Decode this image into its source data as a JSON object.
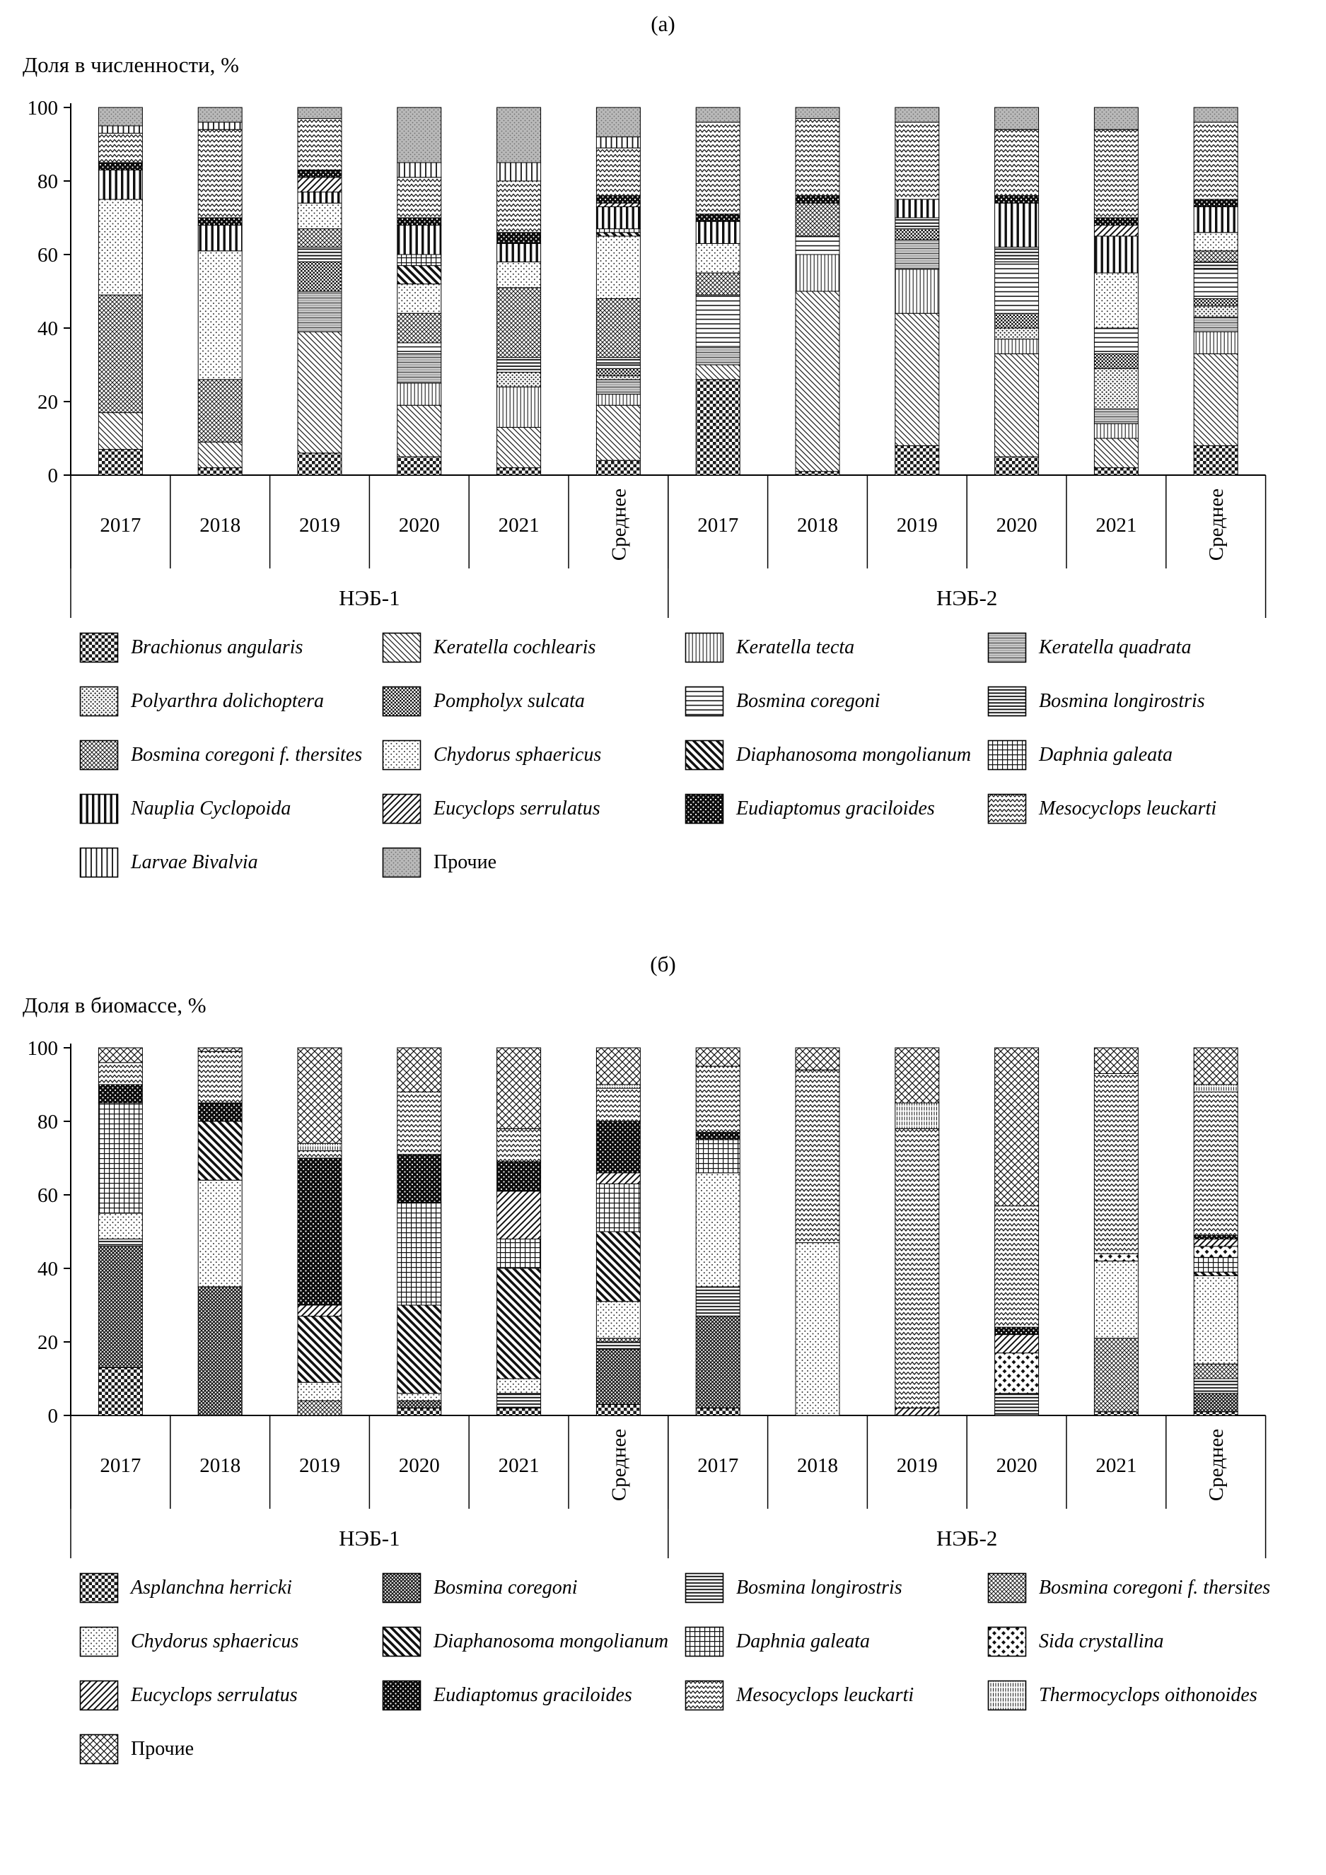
{
  "charts": [
    {
      "panel_label": "(а)",
      "y_axis_title": "Доля в численности, %",
      "chart_data": {
        "type": "bar",
        "stacked": true,
        "ylim": [
          0,
          100
        ],
        "yticks": [
          0,
          20,
          40,
          60,
          80,
          100
        ],
        "grid": false,
        "legend_position": "bottom",
        "groups": [
          {
            "label": "НЭБ-1",
            "categories": [
              "2017",
              "2018",
              "2019",
              "2020",
              "2021",
              "Среднее"
            ]
          },
          {
            "label": "НЭБ-2",
            "categories": [
              "2017",
              "2018",
              "2019",
              "2020",
              "2021",
              "Среднее"
            ]
          }
        ],
        "series": [
          {
            "name": "Brachionus angularis",
            "pattern": "checker",
            "values": [
              7,
              2,
              6,
              5,
              2,
              4,
              26,
              1,
              8,
              5,
              2,
              8
            ]
          },
          {
            "name": "Keratella cochlearis",
            "pattern": "diag-back",
            "values": [
              10,
              7,
              33,
              14,
              11,
              15,
              4,
              49,
              36,
              28,
              8,
              25
            ]
          },
          {
            "name": "Keratella tecta",
            "pattern": "vlines-fine",
            "values": [
              0,
              0,
              0,
              6,
              11,
              3,
              0,
              10,
              12,
              4,
              4,
              6
            ]
          },
          {
            "name": "Keratella quadrata",
            "pattern": "hdash-gray",
            "values": [
              0,
              0,
              11,
              8,
              0,
              4,
              5,
              0,
              8,
              0,
              4,
              4
            ]
          },
          {
            "name": "Polyarthra dolichoptera",
            "pattern": "dots",
            "values": [
              0,
              0,
              0,
              0,
              4,
              1,
              0,
              0,
              0,
              3,
              11,
              3
            ]
          },
          {
            "name": "Pompholyx sulcata",
            "pattern": "checker-fine",
            "values": [
              0,
              0,
              8,
              0,
              0,
              2,
              0,
              0,
              3,
              4,
              4,
              2
            ]
          },
          {
            "name": "Bosmina coregoni",
            "pattern": "hlines",
            "values": [
              0,
              0,
              0,
              3,
              0,
              1,
              14,
              5,
              0,
              14,
              7,
              8
            ]
          },
          {
            "name": "Bosmina longirostris",
            "pattern": "hlines-thick",
            "values": [
              0,
              0,
              4,
              0,
              4,
              2,
              0,
              0,
              3,
              4,
              0,
              2
            ]
          },
          {
            "name": "Bosmina coregoni f. thersites",
            "pattern": "weave",
            "values": [
              32,
              17,
              5,
              8,
              19,
              16,
              6,
              9,
              0,
              0,
              0,
              3
            ]
          },
          {
            "name": "Chydorus sphaericus",
            "pattern": "dots-light",
            "values": [
              26,
              35,
              7,
              8,
              7,
              17,
              8,
              0,
              0,
              0,
              15,
              5
            ]
          },
          {
            "name": "Diaphanosoma mongolianum",
            "pattern": "diag-back-bold",
            "values": [
              0,
              0,
              0,
              5,
              0,
              1,
              0,
              0,
              0,
              0,
              0,
              0
            ]
          },
          {
            "name": "Daphnia galeata",
            "pattern": "grid",
            "values": [
              0,
              0,
              0,
              3,
              0,
              1,
              0,
              0,
              0,
              0,
              0,
              0
            ]
          },
          {
            "name": "Nauplia Cyclopoida",
            "pattern": "vbars",
            "values": [
              8,
              7,
              3,
              8,
              5,
              6,
              6,
              0,
              5,
              12,
              10,
              7
            ]
          },
          {
            "name": "Eucyclops serrulatus",
            "pattern": "diag-fwd",
            "values": [
              0,
              0,
              4,
              0,
              0,
              1,
              0,
              0,
              0,
              0,
              3,
              0
            ]
          },
          {
            "name": "Eudiaptomus graciloides",
            "pattern": "black-dots",
            "values": [
              2,
              2,
              2,
              2,
              3,
              2,
              2,
              2,
              0,
              2,
              2,
              2
            ]
          },
          {
            "name": "Mesocyclops leuckarti",
            "pattern": "zigzag",
            "values": [
              8,
              24,
              14,
              11,
              14,
              13,
              25,
              21,
              21,
              18,
              24,
              21
            ]
          },
          {
            "name": "Larvae Bivalvia",
            "pattern": "vlines",
            "values": [
              2,
              2,
              0,
              4,
              5,
              3,
              0,
              0,
              0,
              0,
              0,
              0
            ]
          },
          {
            "name": "Прочие",
            "pattern": "gray-dots",
            "italic": false,
            "values": [
              5,
              4,
              3,
              15,
              15,
              8,
              4,
              3,
              4,
              6,
              6,
              4
            ]
          }
        ]
      }
    },
    {
      "panel_label": "(б)",
      "y_axis_title": "Доля в биомассе, %",
      "chart_data": {
        "type": "bar",
        "stacked": true,
        "ylim": [
          0,
          100
        ],
        "yticks": [
          0,
          20,
          40,
          60,
          80,
          100
        ],
        "grid": false,
        "legend_position": "bottom",
        "groups": [
          {
            "label": "НЭБ-1",
            "categories": [
              "2017",
              "2018",
              "2019",
              "2020",
              "2021",
              "Среднее"
            ]
          },
          {
            "label": "НЭБ-2",
            "categories": [
              "2017",
              "2018",
              "2019",
              "2020",
              "2021",
              "Среднее"
            ]
          }
        ],
        "series": [
          {
            "name": "Asplanchna herricki",
            "pattern": "checker",
            "values": [
              13,
              0,
              0,
              2,
              2,
              3,
              2,
              0,
              0,
              0,
              1,
              1
            ]
          },
          {
            "name": "Bosmina coregoni",
            "pattern": "weave-dark",
            "values": [
              33,
              35,
              0,
              2,
              0,
              15,
              25,
              0,
              0,
              0,
              0,
              5
            ]
          },
          {
            "name": "Bosmina longirostris",
            "pattern": "hlines-thick",
            "values": [
              2,
              0,
              0,
              0,
              4,
              2,
              8,
              0,
              0,
              6,
              0,
              4
            ]
          },
          {
            "name": "Bosmina coregoni f. thersites",
            "pattern": "weave",
            "values": [
              0,
              0,
              4,
              0,
              0,
              1,
              0,
              0,
              0,
              0,
              20,
              4
            ]
          },
          {
            "name": "Chydorus sphaericus",
            "pattern": "dots-light",
            "values": [
              7,
              29,
              5,
              2,
              4,
              10,
              31,
              47,
              0,
              0,
              21,
              24
            ]
          },
          {
            "name": "Diaphanosoma mongolianum",
            "pattern": "diag-back-bold",
            "values": [
              0,
              16,
              18,
              24,
              30,
              19,
              0,
              0,
              0,
              0,
              0,
              1
            ]
          },
          {
            "name": "Daphnia galeata",
            "pattern": "grid",
            "values": [
              30,
              0,
              0,
              28,
              8,
              13,
              9,
              0,
              0,
              0,
              0,
              4
            ]
          },
          {
            "name": "Sida crystallina",
            "pattern": "diamonds",
            "values": [
              0,
              0,
              0,
              0,
              0,
              0,
              0,
              0,
              0,
              11,
              2,
              3
            ]
          },
          {
            "name": "Eucyclops serrulatus",
            "pattern": "diag-fwd",
            "values": [
              0,
              0,
              3,
              0,
              13,
              3,
              0,
              0,
              2,
              5,
              0,
              2
            ]
          },
          {
            "name": "Eudiaptomus graciloides",
            "pattern": "black-dots",
            "values": [
              5,
              5,
              40,
              13,
              8,
              14,
              2,
              0,
              0,
              2,
              0,
              1
            ]
          },
          {
            "name": "Mesocyclops leuckarti",
            "pattern": "zigzag",
            "values": [
              6,
              14,
              2,
              17,
              9,
              9,
              18,
              47,
              76,
              33,
              49,
              39
            ]
          },
          {
            "name": "Thermocyclops oithonoides",
            "pattern": "vdots",
            "values": [
              0,
              0,
              2,
              0,
              0,
              1,
              0,
              0,
              7,
              0,
              0,
              2
            ]
          },
          {
            "name": "Прочие",
            "pattern": "crosshatch",
            "italic": false,
            "values": [
              4,
              1,
              26,
              12,
              22,
              10,
              5,
              6,
              15,
              43,
              7,
              10
            ]
          }
        ]
      }
    }
  ]
}
